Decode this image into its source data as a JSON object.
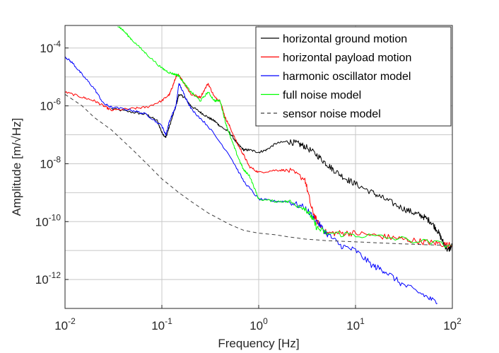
{
  "chart_data": {
    "type": "line",
    "xscale": "log",
    "yscale": "log",
    "xlim": [
      0.01,
      100
    ],
    "ylim": [
      1e-13,
      0.0006
    ],
    "xlabel": "Frequency [Hz]",
    "ylabel": "Amplitude [m/√Hz]",
    "grid": true,
    "legend_position": "top-right",
    "x_ticks": [
      {
        "base": "10",
        "exp": "-2",
        "value": 0.01
      },
      {
        "base": "10",
        "exp": "-1",
        "value": 0.1
      },
      {
        "base": "10",
        "exp": "0",
        "value": 1
      },
      {
        "base": "10",
        "exp": "1",
        "value": 10
      },
      {
        "base": "10",
        "exp": "2",
        "value": 100
      }
    ],
    "y_ticks": [
      {
        "base": "10",
        "exp": "-12",
        "value": 1e-12
      },
      {
        "base": "10",
        "exp": "-10",
        "value": 1e-10
      },
      {
        "base": "10",
        "exp": "-8",
        "value": 1e-08
      },
      {
        "base": "10",
        "exp": "-6",
        "value": 1e-06
      },
      {
        "base": "10",
        "exp": "-4",
        "value": 0.0001
      }
    ],
    "series": [
      {
        "name": "horizontal ground motion",
        "color": "#000000",
        "dash": "solid",
        "x": [
          0.03,
          0.05,
          0.07,
          0.09,
          0.1,
          0.11,
          0.12,
          0.14,
          0.15,
          0.17,
          0.2,
          0.25,
          0.3,
          0.35,
          0.4,
          0.5,
          0.6,
          0.7,
          0.8,
          1.0,
          1.2,
          1.5,
          2.0,
          2.5,
          3.0,
          4.0,
          5.0,
          6.0,
          8.0,
          10,
          15,
          20,
          30,
          40,
          50,
          60,
          70,
          80,
          90,
          100
        ],
        "y": [
          8e-07,
          6e-07,
          5e-07,
          3e-07,
          1.2e-07,
          8e-08,
          2e-07,
          1e-06,
          2.5e-06,
          2e-06,
          1e-06,
          6e-07,
          4e-07,
          3e-07,
          2e-07,
          1.2e-07,
          5e-08,
          3e-08,
          3e-08,
          2.5e-08,
          3e-08,
          5e-08,
          6e-08,
          5e-08,
          4e-08,
          2e-08,
          1e-08,
          6e-09,
          3e-09,
          2e-09,
          1e-09,
          6e-10,
          3e-10,
          2e-10,
          1.5e-10,
          1e-10,
          5e-11,
          2e-11,
          1e-11,
          1.5e-11
        ]
      },
      {
        "name": "horizontal payload motion",
        "color": "#ff0000",
        "dash": "solid",
        "x": [
          0.01,
          0.015,
          0.02,
          0.025,
          0.03,
          0.05,
          0.07,
          0.1,
          0.12,
          0.13,
          0.14,
          0.15,
          0.17,
          0.2,
          0.25,
          0.3,
          0.35,
          0.4,
          0.45,
          0.5,
          0.6,
          0.7,
          0.8,
          1.0,
          1.5,
          2.0,
          3.0,
          3.5,
          4.0,
          5.0,
          7.0,
          10,
          20,
          30,
          50,
          70,
          100
        ],
        "y": [
          3e-06,
          2e-06,
          1.5e-06,
          1e-06,
          7e-07,
          8e-07,
          9e-07,
          1.5e-06,
          2.5e-06,
          5e-06,
          1e-05,
          1.2e-05,
          6e-06,
          2.5e-06,
          2e-06,
          6e-06,
          2e-06,
          1.5e-06,
          4e-07,
          2e-07,
          5e-08,
          2e-08,
          8e-09,
          5e-09,
          6e-09,
          6e-09,
          3e-09,
          3e-10,
          1e-10,
          4e-11,
          4e-11,
          4e-11,
          3e-11,
          2.5e-11,
          2e-11,
          1.8e-11,
          1.5e-11
        ]
      },
      {
        "name": "harmonic oscillator model",
        "color": "#0000ff",
        "dash": "solid",
        "x": [
          0.01,
          0.012,
          0.015,
          0.02,
          0.025,
          0.03,
          0.05,
          0.07,
          0.1,
          0.11,
          0.12,
          0.14,
          0.15,
          0.17,
          0.2,
          0.3,
          0.5,
          0.7,
          1.0,
          1.5,
          2.0,
          3.0,
          4.0,
          5.0,
          7.0,
          10,
          15,
          20,
          30,
          50,
          70
        ],
        "y": [
          5e-05,
          3e-05,
          1.2e-05,
          4e-06,
          1.2e-06,
          9e-07,
          7e-07,
          5e-07,
          2e-07,
          1e-07,
          3e-07,
          1e-06,
          6e-06,
          2.5e-06,
          8e-07,
          2e-07,
          2e-08,
          2.5e-09,
          6e-10,
          5e-10,
          5e-10,
          3e-10,
          1e-10,
          4e-11,
          1.5e-11,
          1e-11,
          3e-12,
          2e-12,
          7e-13,
          3e-13,
          1.5e-13
        ]
      },
      {
        "name": "full noise model",
        "color": "#00ff00",
        "dash": "solid",
        "x": [
          0.035,
          0.04,
          0.05,
          0.07,
          0.1,
          0.12,
          0.14,
          0.15,
          0.17,
          0.2,
          0.25,
          0.3,
          0.35,
          0.4,
          0.45,
          0.5,
          0.6,
          0.7,
          0.8,
          1.0,
          1.5,
          2.0,
          3.0,
          3.5,
          4.0,
          5.0,
          10,
          30,
          100
        ],
        "y": [
          0.0006,
          0.0004,
          0.00018,
          6e-05,
          2e-05,
          1.4e-05,
          1.2e-05,
          1.1e-05,
          6e-06,
          3e-06,
          1.5e-06,
          3e-06,
          1.5e-06,
          1.5e-06,
          3e-07,
          1e-07,
          2e-08,
          6e-09,
          4e-09,
          6e-10,
          5e-10,
          5e-10,
          3e-10,
          1.5e-10,
          6e-11,
          4e-11,
          3.5e-11,
          2.5e-11,
          1.5e-11
        ]
      },
      {
        "name": "sensor noise model",
        "color": "#404040",
        "dash": "dashed",
        "x": [
          0.01,
          0.015,
          0.02,
          0.03,
          0.05,
          0.07,
          0.1,
          0.15,
          0.2,
          0.3,
          0.5,
          0.7,
          1.0,
          1.5,
          2.0,
          3.0,
          5.0,
          10,
          20,
          50,
          100
        ],
        "y": [
          2.5e-06,
          1e-06,
          4e-07,
          1.5e-07,
          3e-08,
          1e-08,
          3e-09,
          1e-09,
          5e-10,
          2e-10,
          8e-11,
          5e-11,
          4e-11,
          3.5e-11,
          3e-11,
          2.5e-11,
          2.2e-11,
          2e-11,
          1.8e-11,
          1.6e-11,
          1.5e-11
        ]
      }
    ]
  }
}
